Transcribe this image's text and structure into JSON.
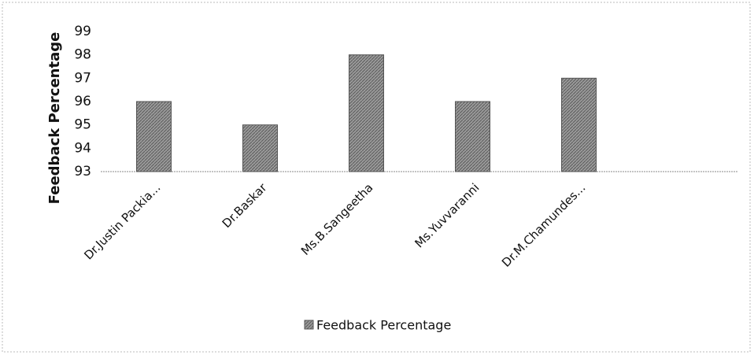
{
  "chart_data": {
    "type": "bar",
    "y_axis_label": "Feedback Percentage",
    "categories": [
      "Dr.Justin Packia...",
      "Dr.Baskar",
      "Ms.B.Sangeetha",
      "Ms.Yuvvaranni",
      "Dr.M.Chamundes...",
      null
    ],
    "series": [
      {
        "name": "Feedback Percentage",
        "color": "#8c8c8c",
        "values": [
          96,
          95,
          98,
          96,
          97,
          null
        ]
      }
    ],
    "ylim": [
      93,
      99
    ],
    "yticks": [
      93,
      94,
      95,
      96,
      97,
      98,
      99
    ],
    "grid": false,
    "legend": "bottom"
  }
}
